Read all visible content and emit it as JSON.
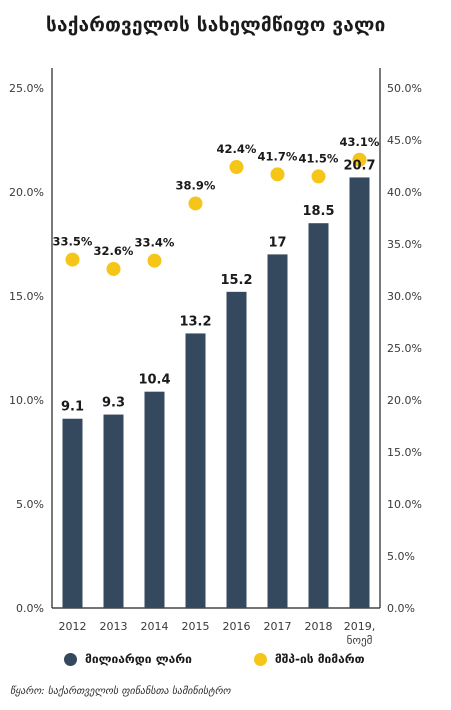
{
  "title": "საქართველოს სახელმწიფო ვალი",
  "source": "წყარო: საქართველოს ფინანსთა სამინისტრო",
  "colors": {
    "bars": "#34495e",
    "dots": "#f5c518",
    "axis": "#222222"
  },
  "legend": [
    {
      "label": "მილიარდი ლარი",
      "color": "#34495e"
    },
    {
      "label": "მშპ-ის მიმართ",
      "color": "#f5c518"
    }
  ],
  "chart_data": {
    "type": "bar",
    "categories": [
      "2012",
      "2013",
      "2014",
      "2015",
      "2016",
      "2017",
      "2018",
      "2019,\nნოემ"
    ],
    "series": [
      {
        "name": "მილიარდი ლარი",
        "type": "bar",
        "axis": "left",
        "values": [
          9.1,
          9.3,
          10.4,
          13.2,
          15.2,
          17,
          18.5,
          20.7
        ],
        "labels": [
          "9.1",
          "9.3",
          "10.4",
          "13.2",
          "15.2",
          "17",
          "18.5",
          "20.7"
        ]
      },
      {
        "name": "მშპ-ის მიმართ",
        "type": "scatter",
        "axis": "right",
        "values": [
          33.5,
          32.6,
          33.4,
          38.9,
          42.4,
          41.7,
          41.5,
          43.1
        ],
        "labels": [
          "33.5%",
          "32.6%",
          "33.4%",
          "38.9%",
          "42.4%",
          "41.7%",
          "41.5%",
          "43.1%"
        ]
      }
    ],
    "left_axis": {
      "ticks": [
        "0.0%",
        "5.0%",
        "10.0%",
        "15.0%",
        "20.0%",
        "25.0%"
      ],
      "range": [
        0,
        25
      ]
    },
    "right_axis": {
      "ticks": [
        "0.0%",
        "5.0%",
        "10.0%",
        "15.0%",
        "20.0%",
        "25.0%",
        "30.0%",
        "35.0%",
        "40.0%",
        "45.0%",
        "50.0%"
      ],
      "range": [
        0,
        50
      ]
    },
    "grid": false,
    "legend_position": "bottom"
  }
}
